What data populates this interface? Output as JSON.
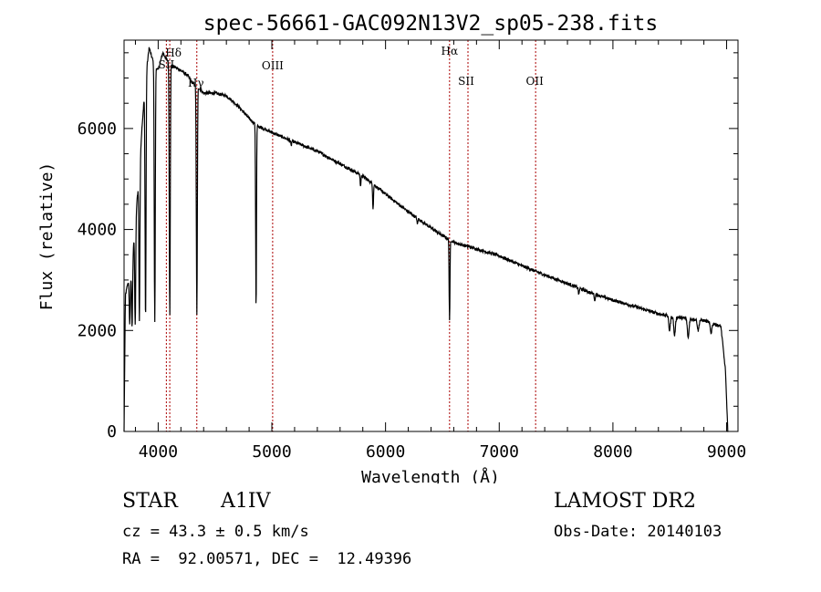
{
  "chart_data": {
    "type": "line",
    "title": "spec-56661-GAC092N13V2_sp05-238.fits",
    "xlabel": "Wavelength (Å)",
    "ylabel": "Flux (relative)",
    "xlim": [
      3700,
      9100
    ],
    "ylim": [
      0,
      7750
    ],
    "xticks": [
      4000,
      5000,
      6000,
      7000,
      8000,
      9000
    ],
    "yticks": [
      0,
      2000,
      4000,
      6000
    ],
    "line_color": "#000000",
    "marker_color": "#aa0000",
    "continuum": [
      [
        3700,
        0
      ],
      [
        3712,
        2700
      ],
      [
        3730,
        2900
      ],
      [
        3760,
        3100
      ],
      [
        3790,
        3900
      ],
      [
        3830,
        5000
      ],
      [
        3860,
        6100
      ],
      [
        3890,
        7000
      ],
      [
        3920,
        7600
      ],
      [
        3960,
        7300
      ],
      [
        4000,
        7150
      ],
      [
        4040,
        7500
      ],
      [
        4080,
        7350
      ],
      [
        4120,
        7250
      ],
      [
        4160,
        7200
      ],
      [
        4200,
        7150
      ],
      [
        4260,
        7050
      ],
      [
        4300,
        6900
      ],
      [
        4360,
        6800
      ],
      [
        4400,
        6700
      ],
      [
        4500,
        6700
      ],
      [
        4600,
        6650
      ],
      [
        4700,
        6450
      ],
      [
        4800,
        6200
      ],
      [
        4870,
        6050
      ],
      [
        4950,
        5980
      ],
      [
        5000,
        5920
      ],
      [
        5200,
        5730
      ],
      [
        5400,
        5550
      ],
      [
        5600,
        5300
      ],
      [
        5800,
        5060
      ],
      [
        6000,
        4700
      ],
      [
        6200,
        4350
      ],
      [
        6400,
        4030
      ],
      [
        6500,
        3880
      ],
      [
        6620,
        3730
      ],
      [
        6700,
        3680
      ],
      [
        7000,
        3480
      ],
      [
        7200,
        3280
      ],
      [
        7400,
        3100
      ],
      [
        7600,
        2930
      ],
      [
        7800,
        2750
      ],
      [
        8000,
        2600
      ],
      [
        8200,
        2470
      ],
      [
        8400,
        2330
      ],
      [
        8600,
        2250
      ],
      [
        8800,
        2200
      ],
      [
        8950,
        2080
      ],
      [
        8990,
        1200
      ],
      [
        9010,
        0
      ]
    ],
    "absorption_lines": [
      [
        3750,
        2100
      ],
      [
        3771,
        2050
      ],
      [
        3798,
        2100
      ],
      [
        3835,
        2200
      ],
      [
        3889,
        2200
      ],
      [
        3970,
        2150
      ],
      [
        4102,
        2300
      ],
      [
        4340,
        2300
      ],
      [
        4861,
        2400
      ],
      [
        5170,
        5650
      ],
      [
        5780,
        4850
      ],
      [
        5890,
        4420
      ],
      [
        6280,
        4100
      ],
      [
        6563,
        2200
      ],
      [
        7700,
        2700
      ],
      [
        7840,
        2580
      ],
      [
        8498,
        2000
      ],
      [
        8542,
        1900
      ],
      [
        8662,
        1850
      ],
      [
        8750,
        2000
      ],
      [
        8863,
        1950
      ]
    ],
    "emission_markers": [
      {
        "label": "Hδ",
        "x": 4102
      },
      {
        "label": "SII",
        "x": 4072
      },
      {
        "label": "Hγ",
        "x": 4340
      },
      {
        "label": "OIII",
        "x": 5007
      },
      {
        "label": "Hα",
        "x": 6563
      },
      {
        "label": "OII",
        "x": 7320
      },
      {
        "label": "SII",
        "x": 6725
      }
    ]
  },
  "info": {
    "object_class": "STAR",
    "subclass": "A1IV",
    "survey": "LAMOST DR2",
    "cz": "cz = 43.3 ± 0.5 km/s",
    "obs_date": "Obs-Date: 20140103",
    "coords": "RA =  92.00571, DEC =  12.49396"
  }
}
